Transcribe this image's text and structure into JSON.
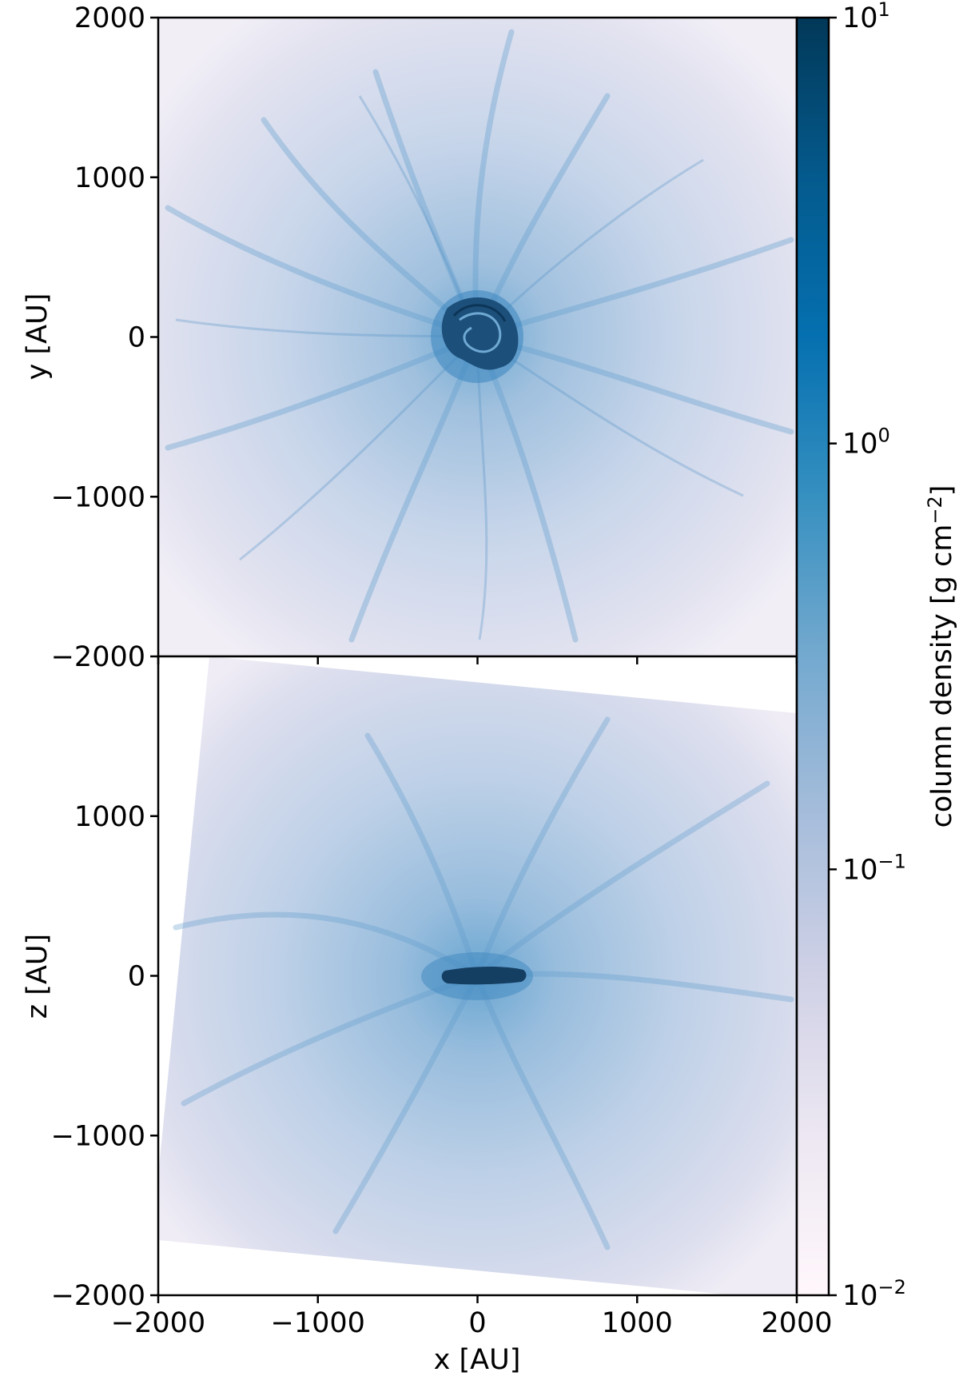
{
  "chart_data": [
    {
      "type": "heatmap",
      "panel": "top",
      "description_of_field": "face-on projection",
      "xlim": [
        -2000,
        2000
      ],
      "ylim": [
        -2000,
        2000
      ],
      "ylabel": "y [AU]",
      "xlabel": "",
      "yticks": [
        2000,
        1000,
        0,
        -1000,
        -2000
      ],
      "ytick_labels": [
        "2000",
        "1000",
        "0",
        "−1000",
        "−2000"
      ],
      "xticks": [
        -2000,
        -1000,
        0,
        1000,
        2000
      ],
      "xtick_labels": [],
      "features": [
        "dense spiral core at origin",
        "filaments radiating outward"
      ]
    },
    {
      "type": "heatmap",
      "panel": "bottom",
      "xlim": [
        -2000,
        2000
      ],
      "ylim": [
        -2000,
        2000
      ],
      "ylabel": "z [AU]",
      "xlabel": "x [AU]",
      "yticks": [
        1000,
        0,
        -1000,
        -2000
      ],
      "ytick_labels": [
        "1000",
        "0",
        "−1000",
        "−2000"
      ],
      "xticks": [
        -2000,
        -1000,
        0,
        1000,
        2000
      ],
      "xtick_labels": [
        "−2000",
        "−1000",
        "0",
        "1000",
        "2000"
      ],
      "features": [
        "edge-on dense disk at origin",
        "rotated projection with blank corners"
      ]
    }
  ],
  "colorbar": {
    "label": "column density [g cm⁻²]",
    "label_text": "column density [g cm",
    "label_exp": "−2",
    "label_close": "]",
    "scale": "log",
    "range": [
      0.01,
      10
    ],
    "ticks": [
      {
        "value": 10,
        "base": "10",
        "exp": "1"
      },
      {
        "value": 1,
        "base": "10",
        "exp": "0"
      },
      {
        "value": 0.1,
        "base": "10",
        "exp": "−1"
      },
      {
        "value": 0.01,
        "base": "10",
        "exp": "−2"
      }
    ],
    "colormap": "PuBu",
    "colors": [
      "#fff7fb",
      "#ece7f2",
      "#d0d1e6",
      "#a6bddb",
      "#74a9cf",
      "#3690c0",
      "#0570b0",
      "#045a8d",
      "#023858"
    ]
  }
}
